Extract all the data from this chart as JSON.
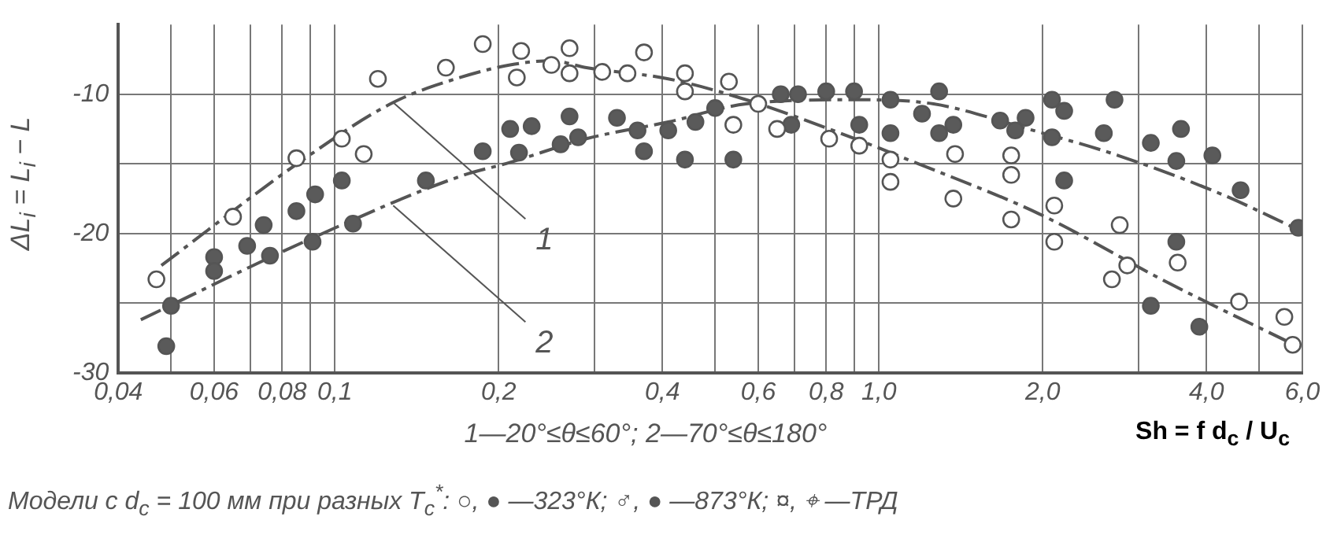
{
  "chart_data": {
    "type": "scatter",
    "xlabel": "Sh = f d$_{c}$ / U$_{c}$",
    "ylabel": "ΔL$_{i}$ = L$_{i}$ − L",
    "log": "x",
    "xlim": [
      0.04,
      6.0
    ],
    "ylim": [
      -30,
      -5
    ],
    "xticks": [
      {
        "value": 0.04,
        "label": "0,04"
      },
      {
        "value": 0.05,
        "label": null
      },
      {
        "value": 0.06,
        "label": "0,06"
      },
      {
        "value": 0.07,
        "label": null
      },
      {
        "value": 0.08,
        "label": "0,08"
      },
      {
        "value": 0.09,
        "label": null
      },
      {
        "value": 0.1,
        "label": "0,1"
      },
      {
        "value": 0.2,
        "label": "0,2"
      },
      {
        "value": 0.3,
        "label": null
      },
      {
        "value": 0.4,
        "label": "0,4"
      },
      {
        "value": 0.5,
        "label": null
      },
      {
        "value": 0.6,
        "label": "0,6"
      },
      {
        "value": 0.7,
        "label": null
      },
      {
        "value": 0.8,
        "label": "0,8"
      },
      {
        "value": 0.9,
        "label": null
      },
      {
        "value": 1.0,
        "label": "1,0"
      },
      {
        "value": 2.0,
        "label": "2,0"
      },
      {
        "value": 3.0,
        "label": null
      },
      {
        "value": 4.0,
        "label": "4,0"
      },
      {
        "value": 5.0,
        "label": null
      },
      {
        "value": 6.0,
        "label": "6,0"
      }
    ],
    "yticks": [
      -30,
      {
        "value": -25,
        "label": null
      },
      -20,
      {
        "value": -15,
        "label": null
      },
      -10
    ],
    "grid": true,
    "legend": false,
    "series": [
      {
        "marker": "circle",
        "color": "#ffffff",
        "x": [
          0.216,
          0.25,
          0.27,
          0.31,
          0.345,
          0.44,
          0.6,
          0.54,
          0.65,
          0.81,
          0.92,
          5.56
        ],
        "values": [
          -8.8,
          -7.9,
          -8.5,
          -8.4,
          -8.5,
          -9.8,
          -10.7,
          -12.2,
          -12.5,
          -13.2,
          -13.7,
          -26.0
        ]
      },
      {
        "marker": "circle",
        "color": "#ffffff",
        "x": [
          0.047,
          0.065,
          0.085,
          0.103,
          0.113,
          0.12,
          0.16,
          1.05,
          1.37,
          1.75,
          1.75,
          2.1,
          2.1,
          2.68,
          2.86
        ],
        "values": [
          -23.3,
          -18.8,
          -14.6,
          -13.2,
          -14.3,
          -8.9,
          -8.1,
          -16.3,
          -17.5,
          -15.8,
          -19.0,
          -18.0,
          -20.6,
          -23.3,
          -22.3
        ]
      },
      {
        "marker": "circle",
        "color": "#ffffff",
        "x": [
          0.187,
          0.22,
          0.27,
          0.37,
          0.44,
          0.53,
          1.05,
          1.38,
          1.75,
          2.77,
          3.54,
          4.59,
          5.76
        ],
        "values": [
          -6.4,
          -6.9,
          -6.7,
          -7.0,
          -8.5,
          -9.1,
          -14.7,
          -14.3,
          -14.4,
          -19.4,
          -22.1,
          -24.9,
          -28.0
        ]
      },
      {
        "marker": "circle",
        "color": "#5a5a5a",
        "x": [
          0.049,
          0.05,
          0.06,
          0.06,
          0.069,
          0.074,
          0.076,
          0.085,
          0.092,
          0.091,
          0.103,
          0.108,
          0.147,
          0.187,
          0.218,
          0.21,
          0.23,
          0.26,
          0.28,
          0.33,
          0.36,
          0.41,
          0.46,
          0.5,
          0.66,
          0.71,
          0.8,
          0.9,
          0.69,
          0.92,
          1.05,
          1.05,
          1.2,
          1.29,
          1.29,
          1.67,
          1.78,
          1.86,
          2.08,
          2.08,
          2.19,
          2.59,
          3.16,
          3.59,
          4.1,
          3.52,
          3.16,
          3.88
        ],
        "values": [
          -28.1,
          -25.2,
          -21.7,
          -22.7,
          -20.9,
          -19.4,
          -21.6,
          -18.4,
          -17.2,
          -20.6,
          -16.2,
          -19.3,
          -16.2,
          -14.1,
          -14.2,
          -12.5,
          -12.3,
          -13.6,
          -13.1,
          -11.7,
          -12.6,
          -12.6,
          -12.0,
          -11.0,
          -10.0,
          -10.0,
          -9.8,
          -9.8,
          -12.2,
          -12.2,
          -10.4,
          -12.8,
          -11.4,
          -9.8,
          -12.8,
          -11.9,
          -12.6,
          -11.7,
          -10.4,
          -13.1,
          -11.2,
          -12.8,
          -13.5,
          -12.5,
          -14.4,
          -20.6,
          -25.2,
          -26.7
        ]
      },
      {
        "marker": "circle",
        "color": "#5a5a5a",
        "x": [
          0.27,
          0.37,
          0.44,
          0.54,
          1.37,
          2.71,
          2.19,
          3.52,
          4.62,
          5.9
        ],
        "values": [
          -11.6,
          -14.1,
          -14.7,
          -14.7,
          -12.2,
          -10.4,
          -16.2,
          -14.8,
          -16.9,
          -19.6
        ]
      },
      {
        "type": "line",
        "line_style": "dashed",
        "color": "#555555",
        "x": [
          0.048,
          0.086,
          0.128,
          0.17,
          0.21,
          0.25,
          0.29,
          0.41,
          0.57,
          0.89,
          1.13,
          1.97,
          3.42,
          5.8
        ],
        "values": [
          -22.3,
          -14.9,
          -10.6,
          -8.8,
          -7.9,
          -7.6,
          -8.1,
          -8.9,
          -10.4,
          -13.1,
          -14.7,
          -18.6,
          -23.6,
          -28.0
        ]
      },
      {
        "type": "line",
        "line_style": "dashed",
        "color": "#555555",
        "x": [
          0.044,
          0.089,
          0.17,
          0.21,
          0.29,
          0.41,
          0.57,
          0.9,
          1.26,
          1.88,
          2.75,
          4.27,
          5.8
        ],
        "values": [
          -26.2,
          -20.5,
          -15.9,
          -14.9,
          -13.2,
          -12.0,
          -10.7,
          -10.4,
          -10.7,
          -12.5,
          -14.4,
          -17.2,
          -19.6
        ]
      }
    ],
    "annotations": [
      {
        "text": "1",
        "x": 0.128,
        "y": -10.6
      },
      {
        "text": "2",
        "x": 0.128,
        "y": -18.0
      },
      "1—20°≤θ≤60°;  2—70°≤θ≤180°",
      "Модели с d$_{c}$ = 100 мм  при разных T$_{c}$$^{*}$: ○, ● —323°К; ♂, ● —873°К; ¤, ⌖ —ТРД"
    ]
  }
}
